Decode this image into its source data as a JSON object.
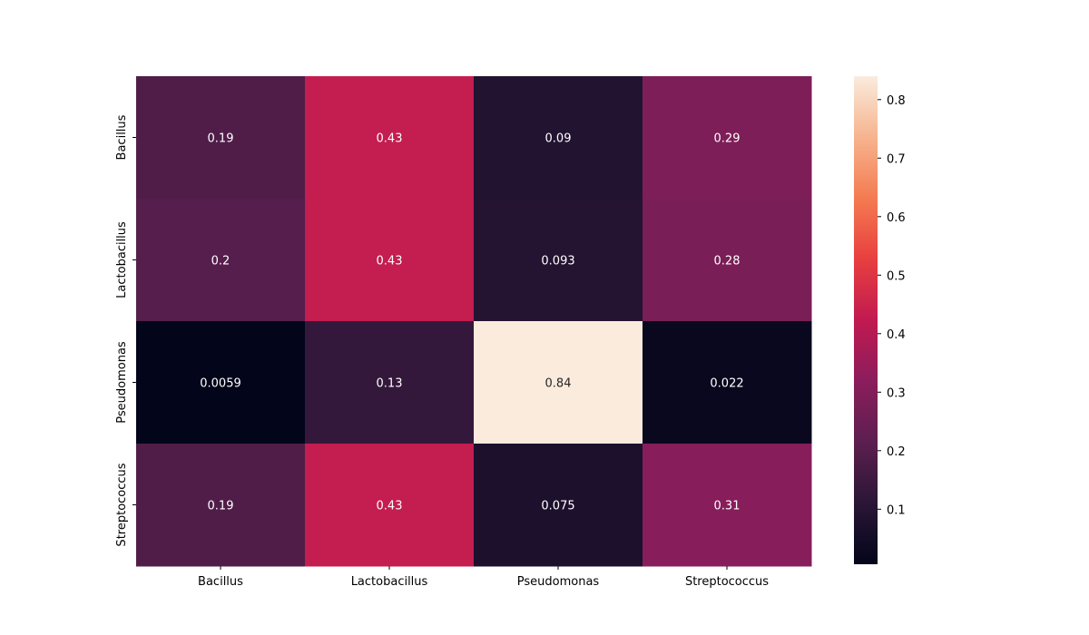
{
  "chart_data": {
    "type": "heatmap",
    "rows": [
      "Bacillus",
      "Lactobacillus",
      "Pseudomonas",
      "Streptococcus"
    ],
    "columns": [
      "Bacillus",
      "Lactobacillus",
      "Pseudomonas",
      "Streptococcus"
    ],
    "values": [
      [
        0.19,
        0.43,
        0.09,
        0.29
      ],
      [
        0.2,
        0.43,
        0.093,
        0.28
      ],
      [
        0.0059,
        0.13,
        0.84,
        0.022
      ],
      [
        0.19,
        0.43,
        0.075,
        0.31
      ]
    ],
    "labels": [
      [
        "0.19",
        "0.43",
        "0.09",
        "0.29"
      ],
      [
        "0.2",
        "0.43",
        "0.093",
        "0.28"
      ],
      [
        "0.0059",
        "0.13",
        "0.84",
        "0.022"
      ],
      [
        "0.19",
        "0.43",
        "0.075",
        "0.31"
      ]
    ],
    "colorbar": {
      "min": 0.0059,
      "max": 0.84,
      "ticks": [
        0.1,
        0.2,
        0.3,
        0.4,
        0.5,
        0.6,
        0.7,
        0.8
      ],
      "tick_labels": [
        "0.1",
        "0.2",
        "0.3",
        "0.4",
        "0.5",
        "0.6",
        "0.7",
        "0.8"
      ],
      "colormap": "rocket",
      "colormap_stops": [
        "#03051a",
        "#2a1636",
        "#5c1f4f",
        "#8b1d5c",
        "#c11a51",
        "#e83f3f",
        "#f47b51",
        "#f6b48e",
        "#faebdd"
      ]
    },
    "title": "",
    "xlabel": "",
    "ylabel": "",
    "grid": false
  }
}
